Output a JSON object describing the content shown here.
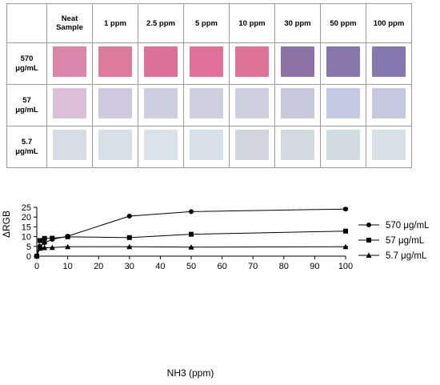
{
  "table": {
    "columns": [
      "Neat\nSample",
      "1 ppm",
      "2.5 ppm",
      "5 ppm",
      "10 ppm",
      "30 ppm",
      "50 ppm",
      "100 ppm"
    ],
    "rows": [
      {
        "label": "570\nμg/mL",
        "colors": [
          "#d986a8",
          "#db7b9c",
          "#dd7097",
          "#e07199",
          "#dd7498",
          "#8b73a5",
          "#8677aa",
          "#8479ad"
        ]
      },
      {
        "label": "57\nμg/mL",
        "colors": [
          "#dcc0d8",
          "#cfcae0",
          "#cfcde0",
          "#d0cfe0",
          "#cecfdf",
          "#c7c7dd",
          "#c2c9e3",
          "#c5c9df"
        ]
      },
      {
        "label": "5.7\nμg/mL",
        "colors": [
          "#d6dee3",
          "#d7e0e4",
          "#d9e3e8",
          "#d5e0e8",
          "#d1d4d9",
          "#d3dade",
          "#d1dde0",
          "#d6e2e4"
        ]
      }
    ]
  },
  "chart_data": {
    "type": "line",
    "xlabel": "NH3 (ppm)",
    "ylabel": "ΔRGB",
    "xlim": [
      0,
      100
    ],
    "ylim": [
      0,
      25
    ],
    "xticks": [
      0,
      10,
      20,
      30,
      40,
      50,
      60,
      70,
      80,
      90,
      100
    ],
    "yticks": [
      0,
      5,
      10,
      15,
      20,
      25
    ],
    "legend_position": "right",
    "series": [
      {
        "name": "570 μg/mL",
        "marker": "circle",
        "x": [
          0,
          1,
          2.5,
          5,
          10,
          30,
          50,
          100
        ],
        "y": [
          0,
          5.0,
          6.8,
          8.6,
          10.2,
          20.5,
          22.8,
          24.1
        ],
        "err": [
          0,
          0.4,
          0.5,
          0.3,
          0.3,
          0.2,
          0.2,
          0.6
        ]
      },
      {
        "name": "57 μg/mL",
        "marker": "square",
        "x": [
          0,
          1,
          2.5,
          5,
          10,
          30,
          50,
          100
        ],
        "y": [
          0,
          8.0,
          9.1,
          9.2,
          9.9,
          9.5,
          11.2,
          12.8
        ],
        "err": [
          0,
          0.3,
          0.2,
          0.2,
          0.2,
          0.2,
          0.2,
          0.5
        ]
      },
      {
        "name": "5.7 μg/mL",
        "marker": "triangle",
        "x": [
          0,
          1,
          2.5,
          5,
          10,
          30,
          50,
          100
        ],
        "y": [
          0,
          4.0,
          4.3,
          4.4,
          4.8,
          4.8,
          4.6,
          4.8
        ],
        "err": [
          0,
          0.2,
          0.1,
          0.1,
          0.1,
          0.1,
          0.1,
          0.1
        ]
      }
    ]
  }
}
